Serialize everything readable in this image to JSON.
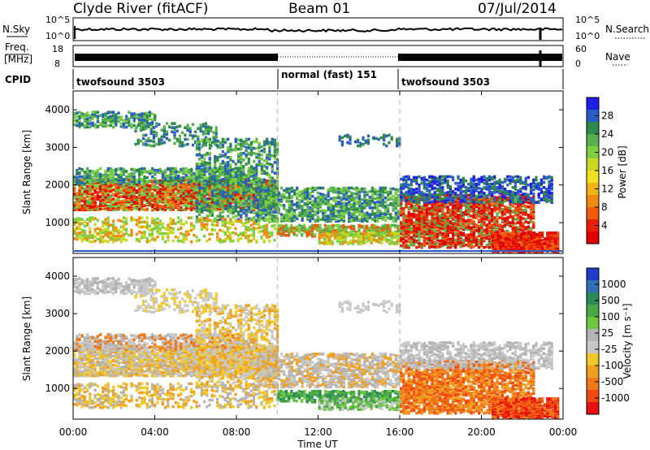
{
  "header": {
    "station": "Clyde River (fitACF)",
    "beam": "Beam 01",
    "date": "07/Jul/2014"
  },
  "nsky_panel": {
    "left_label": "N.Sky",
    "right_label": "N.Search",
    "left_ticks": [
      "10^5",
      "10^0"
    ],
    "right_ticks": [
      "10^5",
      "10^0"
    ]
  },
  "freq_panel": {
    "left_label_1": "Freq.",
    "left_label_2": "[MHz]",
    "right_label": "Nave",
    "left_ticks": [
      "18",
      "8"
    ],
    "right_ticks": [
      "60",
      "0"
    ]
  },
  "cpid": {
    "label": "CPID",
    "segments": [
      {
        "name": "twofsound 3503",
        "start": 0,
        "end": 10
      },
      {
        "name": "normal (fast) 151",
        "start": 10,
        "end": 16
      },
      {
        "name": "twofsound 3503",
        "start": 16,
        "end": 24
      }
    ]
  },
  "chart_data": [
    {
      "type": "heatmap",
      "name": "power-panel",
      "ylabel": "Slant Range [km]",
      "colorbar_label": "Power [dB]",
      "colorbar_ticks": [
        "28",
        "24",
        "20",
        "16",
        "12",
        "8",
        "4"
      ],
      "colorbar_colors": [
        "#1e1ee6",
        "#2a5cc8",
        "#2e8a4a",
        "#58b050",
        "#7cd040",
        "#c8d820",
        "#f0e020",
        "#f0b418",
        "#f08a10",
        "#f05a0a",
        "#e82008",
        "#e00000"
      ],
      "y_ticks": [
        "4000",
        "3000",
        "2000",
        "1000"
      ],
      "ylim": [
        180,
        4500
      ],
      "xlim": [
        0,
        24
      ],
      "dashed_markers_hours": [
        10,
        16
      ]
    },
    {
      "type": "heatmap",
      "name": "velocity-panel",
      "ylabel": "Slant Range [km]",
      "xlabel": "Time UT",
      "colorbar_label": "Velocity [m s⁻¹]",
      "colorbar_ticks": [
        "1000",
        "500",
        "100",
        "25",
        "-25",
        "-100",
        "-500",
        "-1000"
      ],
      "colorbar_colors": [
        "#1e3cc8",
        "#3070b4",
        "#2a8a5a",
        "#48a848",
        "#70c840",
        "#b4b4b4",
        "#c8c8c8",
        "#f0c828",
        "#f0a020",
        "#f07818",
        "#f04a10",
        "#e81010"
      ],
      "y_ticks": [
        "4000",
        "3000",
        "2000",
        "1000"
      ],
      "x_ticks": [
        "00:00",
        "04:00",
        "08:00",
        "12:00",
        "16:00",
        "20:00",
        "00:00"
      ],
      "ylim": [
        180,
        4500
      ],
      "xlim": [
        0,
        24
      ],
      "dashed_markers_hours": [
        10,
        16
      ]
    }
  ]
}
